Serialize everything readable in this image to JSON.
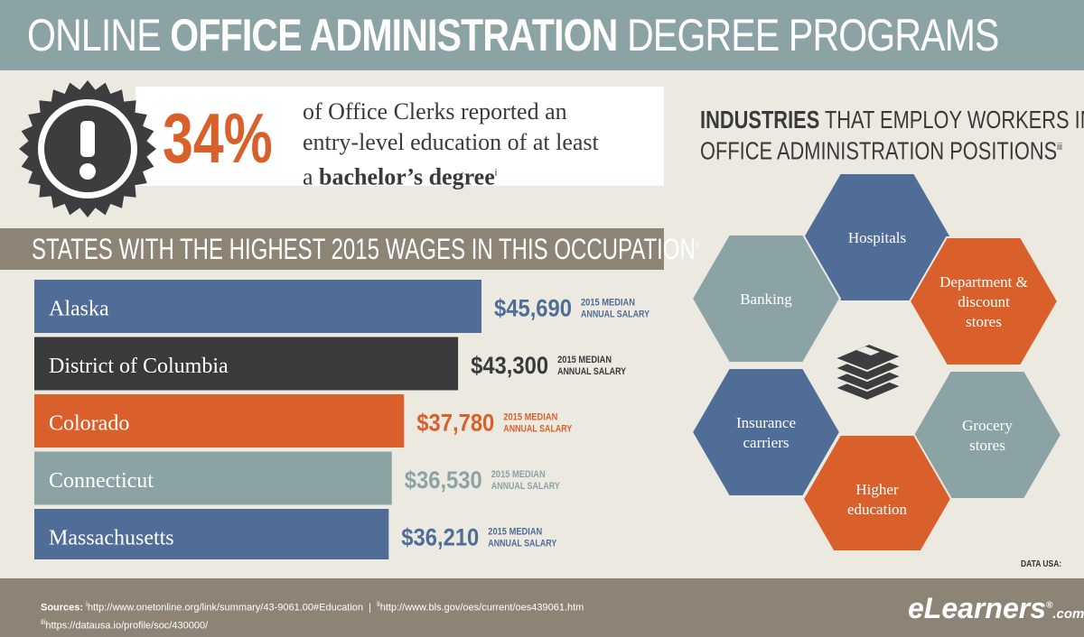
{
  "title": {
    "prefix": "ONLINE ",
    "bold": "OFFICE ADMINISTRATION",
    "suffix": " DEGREE PROGRAMS"
  },
  "stat": {
    "percent": "34%",
    "line1": "of Office Clerks reported an",
    "line2": "entry-level education of at least",
    "line3_prefix": "a ",
    "line3_bold": "bachelor’s degree",
    "note": "i",
    "icon": "exclamation-badge-icon"
  },
  "states_section": {
    "title": "STATES WITH THE HIGHEST 2015 WAGES IN THIS OCCUPATION",
    "note": "ii"
  },
  "industries_section": {
    "title_bold": "INDUSTRIES",
    "title_rest1": " THAT EMPLOY WORKERS IN",
    "title_line2": "OFFICE ADMINISTRATION POSITIONS",
    "note": "iii",
    "center_icon": "books-stack-icon",
    "items": [
      {
        "label": "Hospitals",
        "color": "#4f6d96"
      },
      {
        "label": "Department & discount stores",
        "color": "#d9602a"
      },
      {
        "label": "Grocery stores",
        "color": "#8ba3a5"
      },
      {
        "label": "Higher education",
        "color": "#d9602a"
      },
      {
        "label": "Insurance carriers",
        "color": "#4f6d96"
      },
      {
        "label": "Banking",
        "color": "#8ba3a5"
      }
    ]
  },
  "chart_data": {
    "type": "bar",
    "categories": [
      "Alaska",
      "District of Columbia",
      "Colorado",
      "Connecticut",
      "Massachusetts"
    ],
    "values": [
      45690,
      43300,
      37780,
      36530,
      36210
    ],
    "value_labels": [
      "$45,690",
      "$43,300",
      "$37,780",
      "$36,530",
      "$36,210"
    ],
    "colors": [
      "#4f6d96",
      "#3a3a3c",
      "#d9602a",
      "#8ba3a5",
      "#4f6d96"
    ],
    "caption_line1": "2015 MEDIAN",
    "caption_line2": "ANNUAL SALARY",
    "orientation": "horizontal"
  },
  "footer": {
    "sources_label": "Sources:",
    "source_i_note": "i",
    "source_i": "http://www.onetonline.org/link/summary/43-9061.00#Education",
    "separator": "|",
    "source_ii_note": "ii",
    "source_ii": "http://www.bls.gov/oes/current/oes439061.htm",
    "source_iii_note": "iii",
    "source_iii": "https://datausa.io/profile/soc/430000/",
    "brand": "eLearners",
    "brand_suffix": ".com",
    "brand_reg": "®"
  },
  "datausa_credit": "DATA USA:"
}
